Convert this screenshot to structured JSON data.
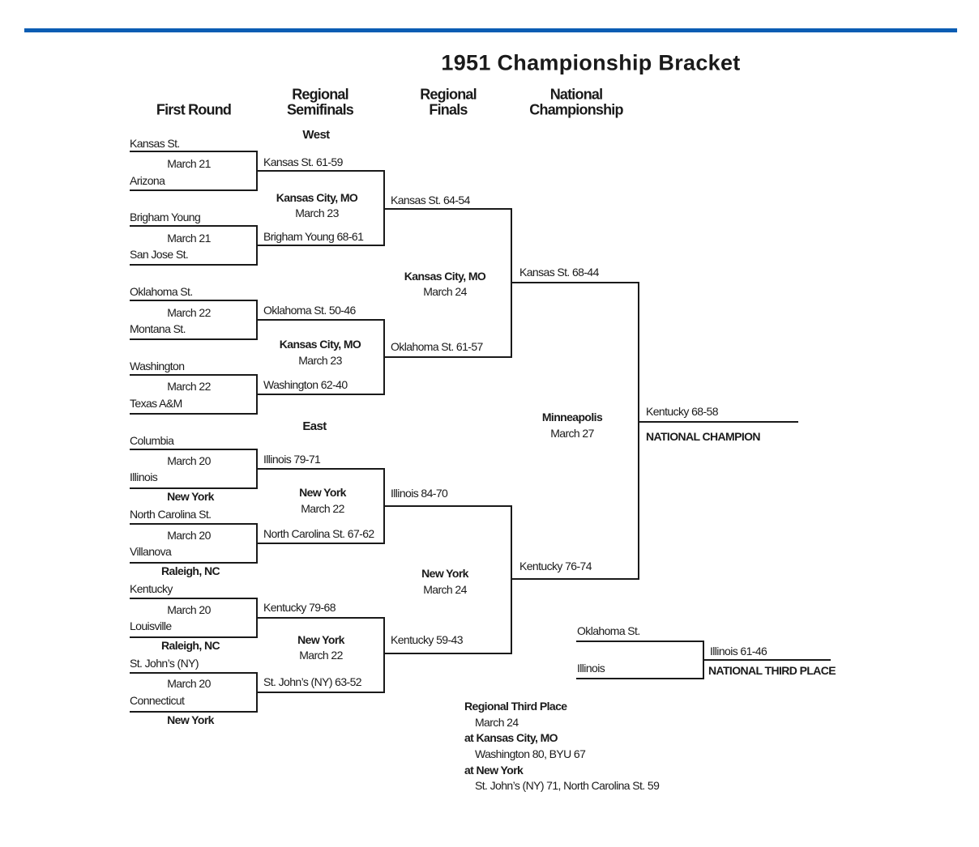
{
  "title": "1951 Championship Bracket",
  "headers": {
    "first_round": "First Round",
    "regional_semifinals": [
      "Regional",
      "Semifinals"
    ],
    "regional_finals": [
      "Regional",
      "Finals"
    ],
    "national_championship": [
      "National",
      "Championship"
    ]
  },
  "regions": {
    "west": "West",
    "east": "East"
  },
  "first_round": {
    "teams": [
      "Kansas St.",
      "Arizona",
      "Brigham Young",
      "San Jose St.",
      "Oklahoma St.",
      "Montana St.",
      "Washington",
      "Texas A&M",
      "Columbia",
      "Illinois",
      "North Carolina St.",
      "Villanova",
      "Kentucky",
      "Louisville",
      "St. John’s (NY)",
      "Connecticut"
    ],
    "dates": [
      "March 21",
      "March 21",
      "March 22",
      "March 22",
      "March 20",
      "March 20",
      "March 20",
      "March 20"
    ],
    "sites": [
      "New York",
      "Raleigh, NC",
      "Raleigh, NC",
      "New York"
    ]
  },
  "regional_semifinals": {
    "results": [
      "Kansas St. 61-59",
      "Brigham Young 68-61",
      "Oklahoma St. 50-46",
      "Washington 62-40",
      "Illinois 79-71",
      "North Carolina St. 67-62",
      "Kentucky 79-68",
      "St. John’s (NY) 63-52"
    ],
    "sites": [
      {
        "site": "Kansas City, MO",
        "date": "March 23"
      },
      {
        "site": "Kansas City, MO",
        "date": "March 23"
      },
      {
        "site": "New York",
        "date": "March 22"
      },
      {
        "site": "New York",
        "date": "March 22"
      }
    ]
  },
  "regional_finals": {
    "results": [
      "Kansas St. 64-54",
      "Oklahoma St. 61-57",
      "Illinois 84-70",
      "Kentucky 59-43"
    ],
    "sites": [
      {
        "site": "Kansas City, MO",
        "date": "March 24"
      },
      {
        "site": "New York",
        "date": "March 24"
      }
    ]
  },
  "national_semifinals": {
    "results": [
      "Kansas St. 68-44",
      "Kentucky 76-74"
    ]
  },
  "final": {
    "site": "Minneapolis",
    "date": "March 27",
    "result": "Kentucky 68-58",
    "label": "NATIONAL CHAMPION"
  },
  "third_place": {
    "teams": [
      "Oklahoma St.",
      "Illinois"
    ],
    "result": "Illinois 61-46",
    "label": "NATIONAL THIRD PLACE"
  },
  "regional_third_place": {
    "heading": "Regional Third Place",
    "date": "March 24",
    "games": [
      {
        "site": "at Kansas City, MO",
        "result": "Washington 80, BYU 67"
      },
      {
        "site": "at New York",
        "result": "St. John’s (NY) 71, North Carolina St. 59"
      }
    ]
  },
  "colors": {
    "accent_bar": "#0b5db3",
    "lines": "#1a1a1a"
  }
}
